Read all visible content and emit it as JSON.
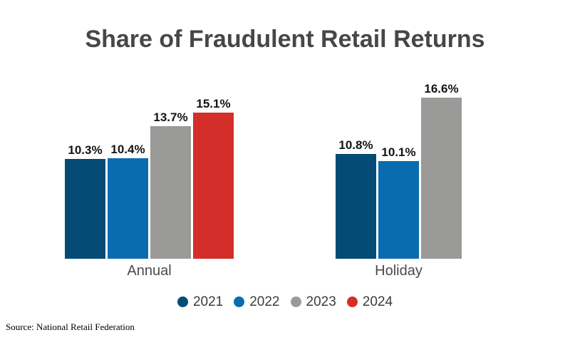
{
  "chart_data": {
    "type": "bar",
    "title": "Share of Fraudulent Retail Returns",
    "categories": [
      "Annual",
      "Holiday"
    ],
    "series": [
      {
        "name": "2021",
        "color": "#044B76",
        "values": [
          10.3,
          10.8
        ],
        "labels": [
          "10.3%",
          "10.8%"
        ]
      },
      {
        "name": "2022",
        "color": "#0A6CB0",
        "values": [
          10.4,
          10.1
        ],
        "labels": [
          "10.4%",
          "10.1%"
        ]
      },
      {
        "name": "2023",
        "color": "#9A9A99",
        "values": [
          13.7,
          16.6
        ],
        "labels": [
          "13.7%",
          "16.6%"
        ]
      },
      {
        "name": "2024",
        "color": "#D32E2A",
        "values": [
          15.1,
          null
        ],
        "labels": [
          "15.1%",
          null
        ]
      }
    ],
    "value_suffix": "%",
    "ylim": [
      0,
      17
    ],
    "grid": false,
    "axis_lines": false,
    "legend_position": "bottom",
    "source": "Source: National Retail Federation"
  }
}
